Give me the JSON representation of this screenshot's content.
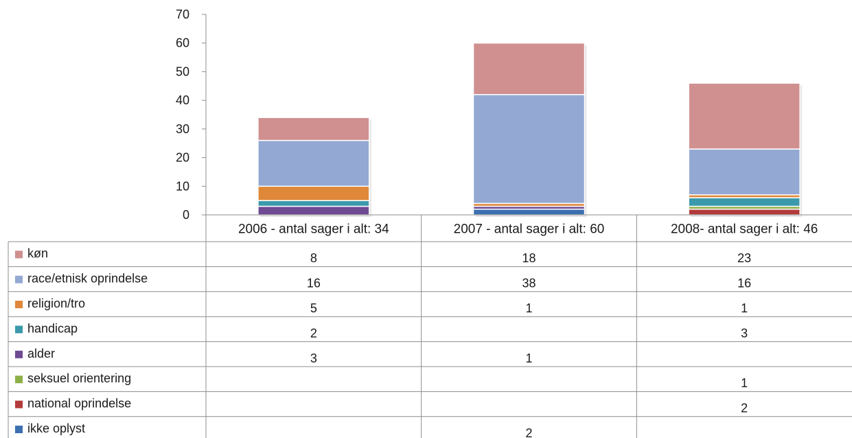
{
  "chart_data": {
    "type": "bar",
    "stacked": true,
    "categories": [
      "2006 - antal sager i alt: 34",
      "2007 - antal sager i alt: 60",
      "2008- antal sager i alt: 46"
    ],
    "series": [
      {
        "name": "køn",
        "color": "#d09090",
        "values": [
          8,
          18,
          23
        ]
      },
      {
        "name": "race/etnisk oprindelse",
        "color": "#93a9d3",
        "values": [
          16,
          38,
          16
        ]
      },
      {
        "name": "religion/tro",
        "color": "#e0883a",
        "values": [
          5,
          1,
          1
        ]
      },
      {
        "name": "handicap",
        "color": "#3a9aab",
        "values": [
          2,
          null,
          3
        ]
      },
      {
        "name": "alder",
        "color": "#6e4a93",
        "values": [
          3,
          1,
          null
        ]
      },
      {
        "name": "seksuel orientering",
        "color": "#8cb048",
        "values": [
          null,
          null,
          1
        ]
      },
      {
        "name": "national oprindelse",
        "color": "#b33a3a",
        "values": [
          null,
          null,
          2
        ]
      },
      {
        "name": "ikke oplyst",
        "color": "#3b6fb0",
        "values": [
          null,
          2,
          null
        ]
      }
    ],
    "ylim": [
      0,
      70
    ],
    "yticks": [
      0,
      10,
      20,
      30,
      40,
      50,
      60,
      70
    ],
    "grid": false,
    "legend": "data-table"
  }
}
